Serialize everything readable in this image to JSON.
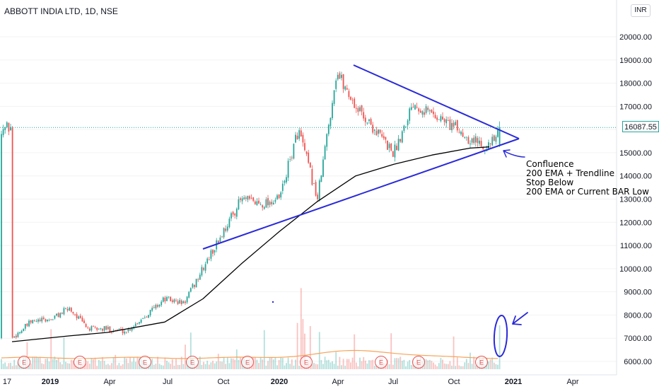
{
  "header": {
    "title": "ABBOTT INDIA LTD, 1D, NSE",
    "currency": "INR"
  },
  "colors": {
    "up": "#26a69a",
    "down": "#ef5350",
    "ema": "#000000",
    "trendline": "#2a2ad8",
    "volume_ma": "#f6a45a",
    "earnings": "#e15759"
  },
  "chart_data": {
    "type": "candlestick",
    "title": "ABBOTT INDIA LTD, 1D, NSE",
    "x_ticks": [
      "17",
      "2019",
      "Apr",
      "Jul",
      "Oct",
      "2020",
      "Apr",
      "Jul",
      "Oct",
      "2021",
      "Apr"
    ],
    "y_ticks": [
      6000,
      7000,
      8000,
      9000,
      10000,
      11000,
      12000,
      13000,
      14000,
      15000,
      16000,
      17000,
      18000,
      19000,
      20000
    ],
    "y_tick_labels": [
      "6000.00",
      "7000.00",
      "8000.00",
      "9000.00",
      "10000.00",
      "11000.00",
      "12000.00",
      "13000.00",
      "14000.00",
      "15000.00",
      "16000.00",
      "17000.00",
      "18000.00",
      "19000.00",
      "20000.00"
    ],
    "ylim": [
      5700,
      21200
    ],
    "last_price": "16087.55",
    "last_price_value": 16087.55,
    "price_path": [
      {
        "x": "Nov 2018",
        "y": 7000
      },
      {
        "x": "Dec 2018",
        "y": 7700
      },
      {
        "x": "Jan 2019",
        "y": 7800
      },
      {
        "x": "Feb 2019",
        "y": 8300
      },
      {
        "x": "Mar 2019",
        "y": 7400
      },
      {
        "x": "Apr 2019",
        "y": 7400
      },
      {
        "x": "May 2019",
        "y": 7300
      },
      {
        "x": "Jun 2019",
        "y": 8000
      },
      {
        "x": "Jul 2019",
        "y": 8700
      },
      {
        "x": "Aug 2019",
        "y": 8500
      },
      {
        "x": "Sep 2019",
        "y": 10000
      },
      {
        "x": "Oct 2019",
        "y": 11500
      },
      {
        "x": "Nov 2019",
        "y": 13000
      },
      {
        "x": "Dec 2019",
        "y": 12800
      },
      {
        "x": "Jan 2020",
        "y": 13000
      },
      {
        "x": "Feb 2020",
        "y": 16000
      },
      {
        "x": "Mar 2020",
        "y": 13000
      },
      {
        "x": "Apr 2020",
        "y": 18500
      },
      {
        "x": "May 2020",
        "y": 17000
      },
      {
        "x": "Jun 2020",
        "y": 16000
      },
      {
        "x": "Jul 2020",
        "y": 15000
      },
      {
        "x": "Aug 2020",
        "y": 17200
      },
      {
        "x": "Sep 2020",
        "y": 16700
      },
      {
        "x": "Oct 2020",
        "y": 16200
      },
      {
        "x": "Nov 2020",
        "y": 15600
      },
      {
        "x": "Dec 2020",
        "y": 15300
      },
      {
        "x": "Dec 2020 (last)",
        "y": 16087.55
      }
    ],
    "ema200": [
      {
        "x": "Nov 2018",
        "y": 6850
      },
      {
        "x": "Feb 2019",
        "y": 7100
      },
      {
        "x": "Apr 2019",
        "y": 7250
      },
      {
        "x": "Jul 2019",
        "y": 7700
      },
      {
        "x": "Sep 2019",
        "y": 8700
      },
      {
        "x": "Nov 2019",
        "y": 10200
      },
      {
        "x": "Jan 2020",
        "y": 11600
      },
      {
        "x": "Mar 2020",
        "y": 12900
      },
      {
        "x": "May 2020",
        "y": 14000
      },
      {
        "x": "Jul 2020",
        "y": 14500
      },
      {
        "x": "Sep 2020",
        "y": 14900
      },
      {
        "x": "Nov 2020",
        "y": 15200
      },
      {
        "x": "Dec 2020",
        "y": 15250
      }
    ],
    "trendlines": [
      {
        "from": {
          "x": "Aug 2019",
          "y": 10800
        },
        "to": {
          "x": "Jan 2021",
          "y": 15500
        }
      },
      {
        "from": {
          "x": "Apr 2020",
          "y": 18800
        },
        "to": {
          "x": "Jan 2021",
          "y": 15500
        }
      }
    ],
    "annotation": [
      "Confluence",
      "200 EMA + Trendline",
      "Stop Below",
      "200 EMA or Current BAR Low"
    ],
    "earnings_marker": "E",
    "earnings_count": 9,
    "series": [
      {
        "name": "200 EMA"
      },
      {
        "name": "Volume"
      }
    ]
  }
}
